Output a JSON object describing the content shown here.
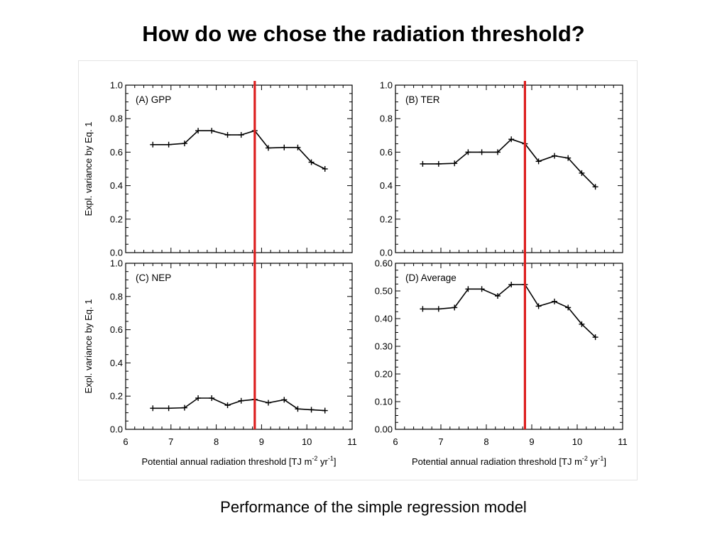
{
  "slide": {
    "title": "How do we chose the radiation threshold?",
    "caption": "Performance of the simple regression model"
  },
  "colors": {
    "threshold_line": "#dd1f1f",
    "series": "#000000"
  },
  "shared": {
    "xlabel": "Potential annual radiation threshold [TJ m",
    "xlabel_sup1": "-2",
    "xlabel_mid": " yr",
    "xlabel_sup2": "-1",
    "xlabel_end": "]",
    "ylabel": "Expl. variance by Eq. 1",
    "threshold": 8.85
  },
  "chart_data": [
    {
      "type": "line",
      "title": "(A) GPP",
      "x": [
        6.6,
        6.95,
        7.3,
        7.6,
        7.9,
        8.25,
        8.55,
        8.85,
        9.15,
        9.5,
        9.8,
        10.1,
        10.4
      ],
      "y": [
        0.645,
        0.645,
        0.652,
        0.728,
        0.728,
        0.703,
        0.703,
        0.728,
        0.625,
        0.628,
        0.628,
        0.54,
        0.5
      ],
      "xlim": [
        6,
        11
      ],
      "ylim": [
        0,
        1.0
      ],
      "yticks": [
        "0.0",
        "0.2",
        "0.4",
        "0.6",
        "0.8",
        "1.0"
      ],
      "xticks": [],
      "ylabel": "Expl. variance by Eq. 1",
      "xlabel": ""
    },
    {
      "type": "line",
      "title": "(B) TER",
      "x": [
        6.6,
        6.95,
        7.3,
        7.6,
        7.9,
        8.25,
        8.55,
        8.85,
        9.15,
        9.5,
        9.8,
        10.1,
        10.4
      ],
      "y": [
        0.53,
        0.53,
        0.533,
        0.6,
        0.6,
        0.6,
        0.677,
        0.65,
        0.545,
        0.578,
        0.565,
        0.475,
        0.393
      ],
      "xlim": [
        6,
        11
      ],
      "ylim": [
        0,
        1.0
      ],
      "yticks": [
        "0.0",
        "0.2",
        "0.4",
        "0.6",
        "0.8",
        "1.0"
      ],
      "xticks": [],
      "ylabel": "",
      "xlabel": ""
    },
    {
      "type": "line",
      "title": "(C) NEP",
      "x": [
        6.6,
        6.95,
        7.3,
        7.6,
        7.9,
        8.25,
        8.55,
        8.85,
        9.15,
        9.5,
        9.8,
        10.1,
        10.4
      ],
      "y": [
        0.127,
        0.127,
        0.13,
        0.188,
        0.188,
        0.145,
        0.172,
        0.18,
        0.16,
        0.178,
        0.123,
        0.118,
        0.113
      ],
      "xlim": [
        6,
        11
      ],
      "ylim": [
        0,
        1.0
      ],
      "yticks": [
        "0.0",
        "0.2",
        "0.4",
        "0.6",
        "0.8",
        "1.0"
      ],
      "xticks": [
        "6",
        "7",
        "8",
        "9",
        "10",
        "11"
      ],
      "ylabel": "Expl. variance by Eq. 1",
      "xlabel": "Potential annual radiation threshold [TJ m-2 yr-1]"
    },
    {
      "type": "line",
      "title": "(D) Average",
      "x": [
        6.6,
        6.95,
        7.3,
        7.6,
        7.9,
        8.25,
        8.55,
        8.85,
        9.15,
        9.5,
        9.8,
        10.1,
        10.4
      ],
      "y": [
        0.435,
        0.435,
        0.44,
        0.507,
        0.507,
        0.482,
        0.523,
        0.523,
        0.445,
        0.462,
        0.44,
        0.38,
        0.333
      ],
      "xlim": [
        6,
        11
      ],
      "ylim": [
        0,
        0.6
      ],
      "yticks": [
        "0.00",
        "0.10",
        "0.20",
        "0.30",
        "0.40",
        "0.50",
        "0.60"
      ],
      "xticks": [
        "6",
        "7",
        "8",
        "9",
        "10",
        "11"
      ],
      "ylabel": "",
      "xlabel": "Potential annual radiation threshold [TJ m-2 yr-1]"
    }
  ]
}
